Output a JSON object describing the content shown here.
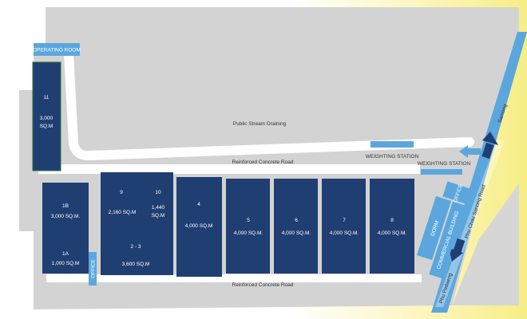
{
  "labels": {
    "operating_room": "OPERATING ROOM",
    "public_stream": "Public Stream Draining",
    "concrete_road_upper": "Reinforced Concrete Road",
    "concrete_road_lower": "Reinforced Concrete Road",
    "weighting_station_1": "WEIGHTING STATION",
    "weighting_station_2": "WEIGHTING STATION",
    "office_right": "OFFICE",
    "office_left": "OFFICE",
    "dorm": "DORM",
    "commercial_building": "COMMERCIAL BUILDING",
    "highway": "Phu Chau Sanong Road",
    "to_top": "Samong",
    "to_bottom": "Phu Pedaeng"
  },
  "units": [
    {
      "id": "11",
      "area": "3,000",
      "area2": "SQ.M"
    },
    {
      "id": "1B",
      "area": "3,000 SQ.M."
    },
    {
      "id": "1A",
      "area": "1,000 SQ.M"
    },
    {
      "id": "9",
      "area": "2,160 SQ.M"
    },
    {
      "id": "10",
      "area": "1,440",
      "area2": "SQ.M"
    },
    {
      "id": "2 - 3",
      "area": "3,600 SQ.M"
    },
    {
      "id": "4",
      "area": "4,000 SQ.M"
    },
    {
      "id": "5",
      "area": "4,000 SQ.M."
    },
    {
      "id": "6",
      "area": "4,000 SQ.M."
    },
    {
      "id": "7",
      "area": "4,000 SQ.M."
    },
    {
      "id": "8",
      "area": "4,000 SQ.M."
    }
  ],
  "colors": {
    "building": "#1f3f73",
    "label_bg": "#5ba7dd",
    "ground": "#d3d3d3",
    "road": "#ffffff",
    "highway": "#5ba7dd"
  }
}
